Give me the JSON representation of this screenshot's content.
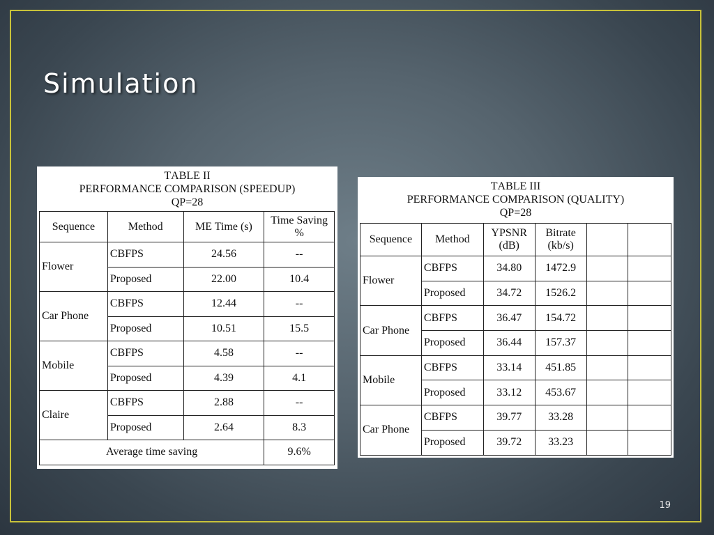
{
  "slide": {
    "title": "Simulation",
    "page_number": "19"
  },
  "table2": {
    "caption_label_prefix": "T",
    "caption_label_rest": "ABLE II",
    "caption_title_parts": [
      "P",
      "ERFORMANCE ",
      "C",
      "OMPARISON (",
      "S",
      "PEEDUP)"
    ],
    "caption_qp": "QP=28",
    "headers": [
      "Sequence",
      "Method",
      "ME Time (s)",
      "Time Saving %"
    ],
    "groups": [
      {
        "sequence": "Flower",
        "rows": [
          {
            "method": "CBFPS",
            "me_time": "24.56",
            "saving": "--"
          },
          {
            "method": "Proposed",
            "me_time": "22.00",
            "saving": "10.4"
          }
        ]
      },
      {
        "sequence": "Car Phone",
        "rows": [
          {
            "method": "CBFPS",
            "me_time": "12.44",
            "saving": "--"
          },
          {
            "method": "Proposed",
            "me_time": "10.51",
            "saving": "15.5"
          }
        ]
      },
      {
        "sequence": "Mobile",
        "rows": [
          {
            "method": "CBFPS",
            "me_time": "4.58",
            "saving": "--"
          },
          {
            "method": "Proposed",
            "me_time": "4.39",
            "saving": "4.1"
          }
        ]
      },
      {
        "sequence": "Claire",
        "rows": [
          {
            "method": "CBFPS",
            "me_time": "2.88",
            "saving": "--"
          },
          {
            "method": "Proposed",
            "me_time": "2.64",
            "saving": "8.3"
          }
        ]
      }
    ],
    "footer_label": "Average time saving",
    "footer_value": "9.6%"
  },
  "table3": {
    "caption_label_prefix": "T",
    "caption_label_rest": "ABLE III",
    "caption_title_parts": [
      "P",
      "ERFORMANCE ",
      "C",
      "OMPARISON (",
      "Q",
      "UALITY)"
    ],
    "caption_qp": "QP=28",
    "headers": [
      "Sequence",
      "Method",
      "YPSNR (dB)",
      "Bitrate (kb/s)",
      "",
      ""
    ],
    "groups": [
      {
        "sequence": "Flower",
        "rows": [
          {
            "method": "CBFPS",
            "ypsnr": "34.80",
            "bitrate": "1472.9"
          },
          {
            "method": "Proposed",
            "ypsnr": "34.72",
            "bitrate": "1526.2"
          }
        ]
      },
      {
        "sequence": "Car Phone",
        "rows": [
          {
            "method": "CBFPS",
            "ypsnr": "36.47",
            "bitrate": "154.72"
          },
          {
            "method": "Proposed",
            "ypsnr": "36.44",
            "bitrate": "157.37"
          }
        ]
      },
      {
        "sequence": "Mobile",
        "rows": [
          {
            "method": "CBFPS",
            "ypsnr": "33.14",
            "bitrate": "451.85"
          },
          {
            "method": "Proposed",
            "ypsnr": "33.12",
            "bitrate": "453.67"
          }
        ]
      },
      {
        "sequence": "Car Phone",
        "rows": [
          {
            "method": "CBFPS",
            "ypsnr": "39.77",
            "bitrate": "33.28"
          },
          {
            "method": "Proposed",
            "ypsnr": "39.72",
            "bitrate": "33.23"
          }
        ]
      }
    ]
  },
  "colors": {
    "frame_border": "#c8c23a",
    "title_text": "#ffffff",
    "table_bg": "#ffffff"
  }
}
